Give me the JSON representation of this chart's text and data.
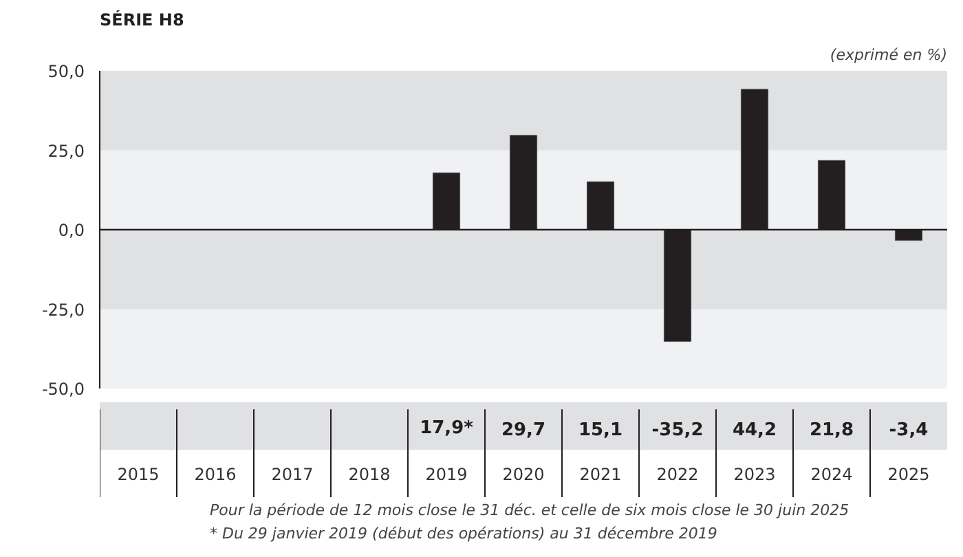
{
  "chart_data": {
    "type": "bar",
    "title": "SÉRIE H8",
    "subtitle": "(exprimé en %)",
    "categories": [
      "2015",
      "2016",
      "2017",
      "2018",
      "2019",
      "2020",
      "2021",
      "2022",
      "2023",
      "2024",
      "2025"
    ],
    "values": [
      null,
      null,
      null,
      null,
      17.9,
      29.7,
      15.1,
      -35.2,
      44.2,
      21.8,
      -3.4
    ],
    "value_labels": [
      null,
      null,
      null,
      null,
      "17,9*",
      "29,7",
      "15,1",
      "-35,2",
      "44,2",
      "21,8",
      "-3,4"
    ],
    "color": "#231f20",
    "ylim": [
      -50,
      50
    ],
    "yticks": [
      {
        "value": -50,
        "label": "-50,0"
      },
      {
        "value": -25,
        "label": "-25,0"
      },
      {
        "value": 0,
        "label": "0,0"
      },
      {
        "value": 25,
        "label": "25,0"
      },
      {
        "value": 50,
        "label": "50,0"
      }
    ],
    "bands": [
      {
        "axis": "y",
        "from": 25,
        "to": 50,
        "color": "#e0e1e3"
      },
      {
        "axis": "y",
        "from": -25,
        "to": 0,
        "color": "#e0e1e3"
      }
    ],
    "ref_lines": [
      {
        "axis": "y",
        "value": 0,
        "color": "#231f20"
      }
    ],
    "annotations": [
      "Pour la période de 12 mois close le 31 déc. et celle de six mois close le 30 juin 2025",
      "* Du 29 janvier 2019 (début des opérations) au 31 décembre 2019"
    ]
  }
}
